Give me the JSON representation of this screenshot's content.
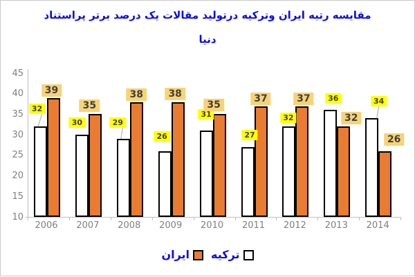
{
  "title": {
    "line1": "مقایسه رتبه ایران وترکیه درتولید مقالات یک درصد برتر پراستناد",
    "line2": "دنیا"
  },
  "legend": {
    "iran_label": "ایران",
    "turkey_label": "ترکیه"
  },
  "colors": {
    "title_blue": "#0b0bf2",
    "iran_orange": "#e97c30",
    "turkey_fill": "#ffffff",
    "bar_border": "#000000",
    "turkey_label_bg": "#ffff00",
    "iran_label_bg": "#f8d376",
    "label_text": "#3f3f3f",
    "axis_gray": "#bfbfbf",
    "tick_text_gray": "#7f7f7f",
    "leader_gray": "#a6a6a6"
  },
  "chart_data": {
    "type": "bar",
    "title": "مقایسه رتبه ایران وترکیه درتولید مقالات یک درصد برتر پراستناد دنیا",
    "categories": [
      "2006",
      "2007",
      "2008",
      "2009",
      "2010",
      "2011",
      "2012",
      "2013",
      "2014"
    ],
    "series": [
      {
        "name": "ترکیه",
        "values": [
          32,
          30,
          29,
          26,
          31,
          27,
          32,
          36,
          34
        ]
      },
      {
        "name": "ایران",
        "values": [
          39,
          35,
          38,
          38,
          35,
          37,
          37,
          32,
          26
        ]
      }
    ],
    "ylim": [
      10,
      45
    ],
    "yticks": [
      45,
      40,
      35,
      30,
      25,
      20,
      15,
      10
    ],
    "grid": "off",
    "data_labels": "on",
    "legend_position": "bottom",
    "xlabel": "",
    "ylabel": ""
  }
}
